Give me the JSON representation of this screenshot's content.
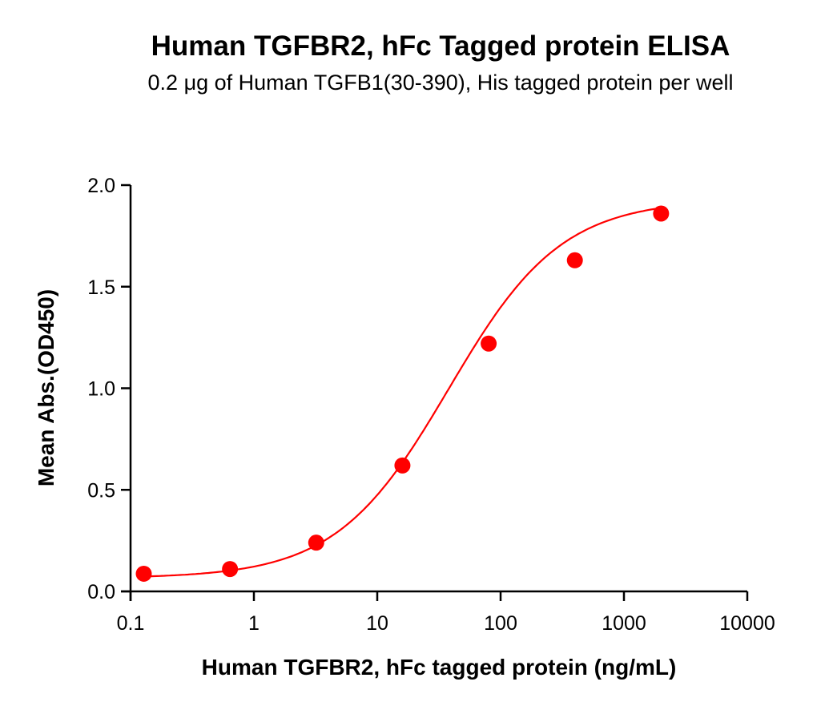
{
  "chart_data": {
    "type": "scatter",
    "title": "Human TGFBR2, hFc Tagged protein ELISA",
    "subtitle": "0.2 μg of Human TGFB1(30-390), His tagged protein per well",
    "xlabel": "Human TGFBR2, hFc tagged protein (ng/mL)",
    "ylabel": "Mean Abs.(OD450)",
    "xscale": "log",
    "xlim": [
      0.1,
      10000
    ],
    "ylim": [
      0.0,
      2.0
    ],
    "x_ticks": [
      "0.1",
      "1",
      "10",
      "100",
      "1000",
      "10000"
    ],
    "y_ticks": [
      "0.0",
      "0.5",
      "1.0",
      "1.5",
      "2.0"
    ],
    "grid": false,
    "legend": null,
    "series": [
      {
        "name": "Human TGFBR2, hFc tagged protein",
        "color": "#ff0000",
        "marker": "circle",
        "fit": "4-parameter logistic curve",
        "x": [
          0.128,
          0.64,
          3.2,
          16,
          80,
          400,
          2000
        ],
        "y": [
          0.087,
          0.11,
          0.24,
          0.62,
          1.22,
          1.63,
          1.86
        ]
      }
    ]
  },
  "colors": {
    "series": "#ff0000",
    "axis": "#000000"
  }
}
